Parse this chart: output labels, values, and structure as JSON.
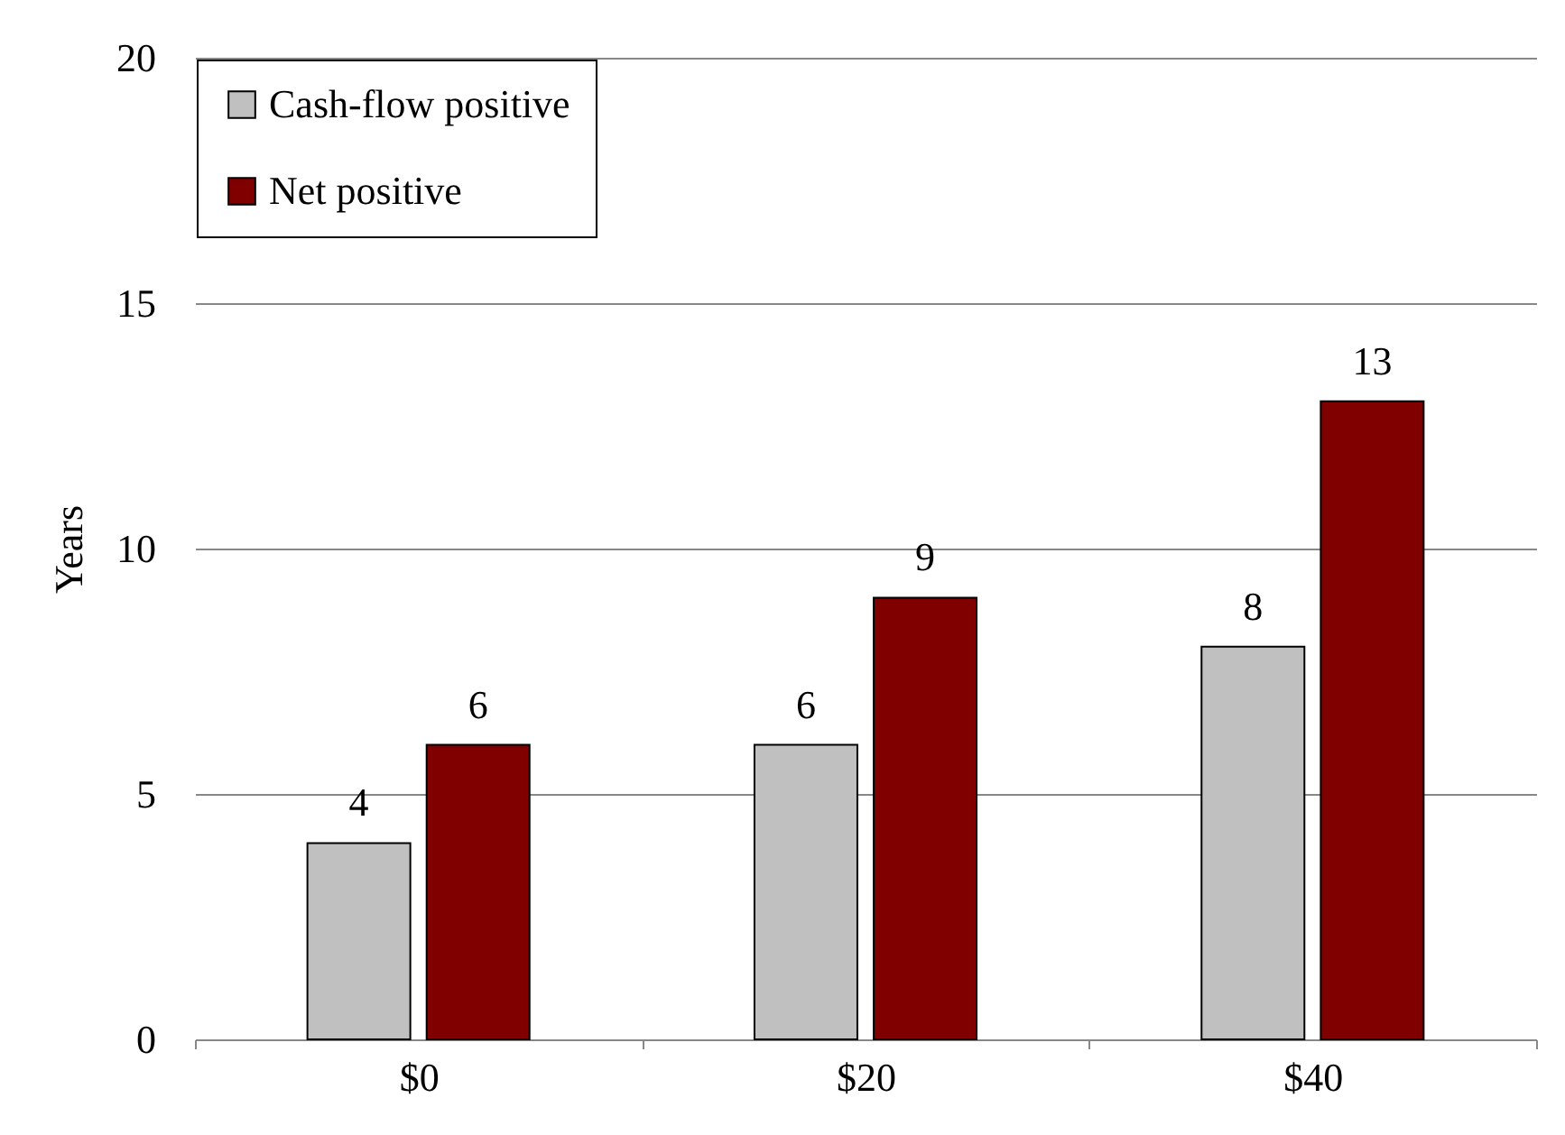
{
  "chart_data": {
    "type": "bar",
    "ylabel": "Years",
    "categories": [
      "$0",
      "$20",
      "$40"
    ],
    "series": [
      {
        "name": "Cash-flow positive",
        "color": "#c0c0c0",
        "values": [
          4,
          6,
          8
        ]
      },
      {
        "name": "Net positive",
        "color": "#800000",
        "values": [
          6,
          9,
          13
        ]
      }
    ],
    "ylim": [
      0,
      20
    ],
    "yticks": [
      0,
      5,
      10,
      15,
      20
    ],
    "grid": "y",
    "legend": "top left",
    "data_labels": true
  }
}
